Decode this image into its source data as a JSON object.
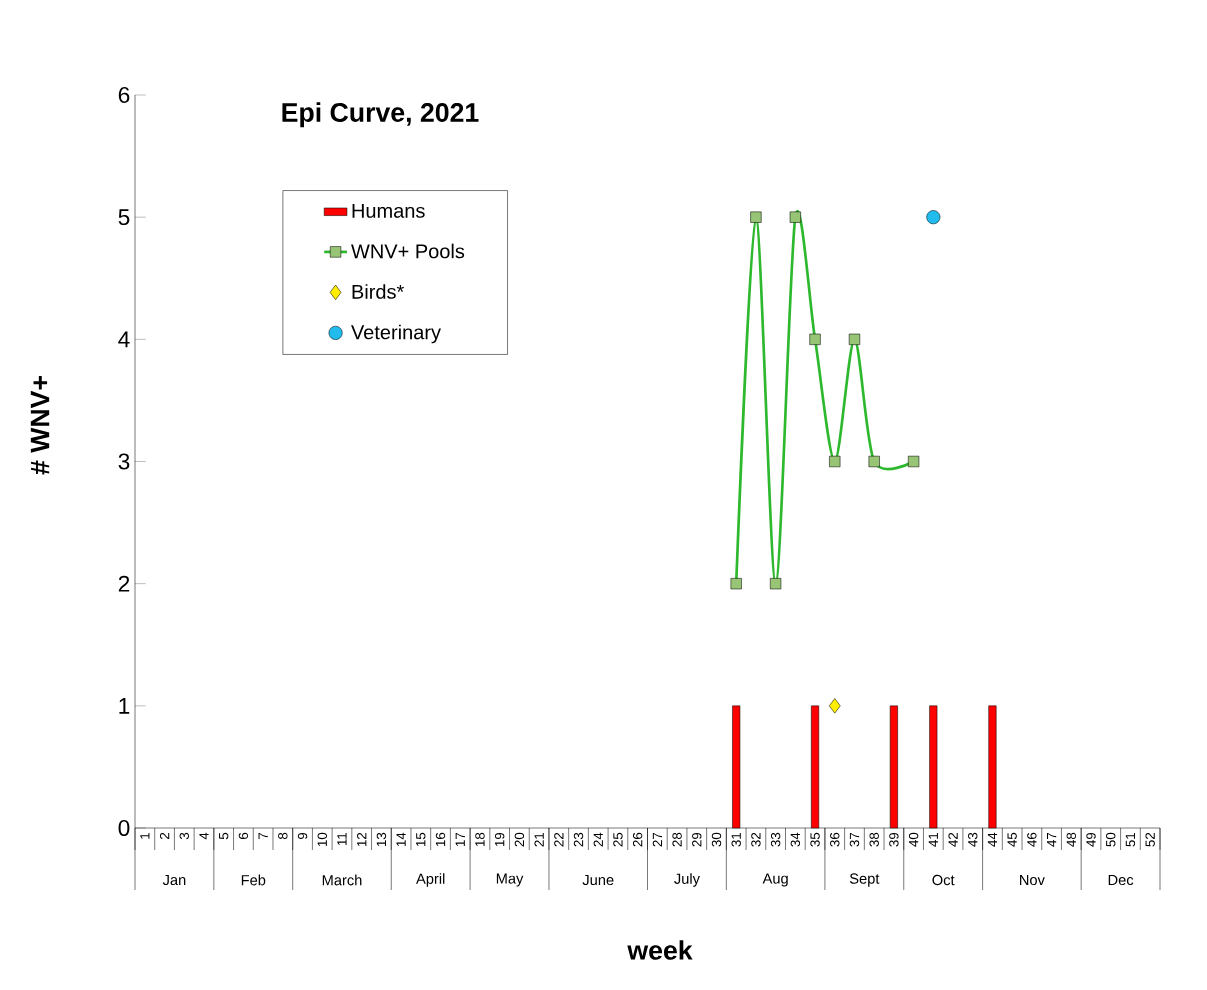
{
  "chart_data": {
    "type": "bar",
    "title": "Epi Curve, 2021",
    "xlabel": "week",
    "ylabel": "# WNV+",
    "categories": [
      "1",
      "2",
      "3",
      "4",
      "5",
      "6",
      "7",
      "8",
      "9",
      "10",
      "11",
      "12",
      "13",
      "14",
      "15",
      "16",
      "17",
      "18",
      "19",
      "20",
      "21",
      "22",
      "23",
      "24",
      "25",
      "26",
      "27",
      "28",
      "29",
      "30",
      "31",
      "32",
      "33",
      "34",
      "35",
      "36",
      "37",
      "38",
      "39",
      "40",
      "41",
      "42",
      "43",
      "44",
      "45",
      "46",
      "47",
      "48",
      "49",
      "50",
      "51",
      "52"
    ],
    "series": [
      {
        "name": "Humans",
        "color": "#ff0000",
        "values": [
          null,
          null,
          null,
          null,
          null,
          null,
          null,
          null,
          null,
          null,
          null,
          null,
          null,
          null,
          null,
          null,
          null,
          null,
          null,
          null,
          null,
          null,
          null,
          null,
          null,
          null,
          null,
          null,
          null,
          null,
          1,
          null,
          null,
          null,
          1,
          null,
          null,
          null,
          1,
          null,
          1,
          null,
          null,
          1,
          null,
          null,
          null,
          null,
          null,
          null,
          null,
          null
        ]
      },
      {
        "name": "WNV+ Pools",
        "type": "line",
        "color": "#2db82d",
        "marker": "square",
        "line_style": "solid",
        "values": [
          null,
          null,
          null,
          null,
          null,
          null,
          null,
          null,
          null,
          null,
          null,
          null,
          null,
          null,
          null,
          null,
          null,
          null,
          null,
          null,
          null,
          null,
          null,
          null,
          null,
          null,
          null,
          null,
          null,
          null,
          2,
          5,
          2,
          5,
          4,
          3,
          4,
          3,
          null,
          3,
          null,
          null,
          null,
          null,
          null,
          null,
          null,
          null,
          null,
          null,
          null,
          null
        ]
      },
      {
        "name": "Birds*",
        "type": "scatter",
        "color": "#ffee00",
        "marker": "diamond",
        "values": [
          null,
          null,
          null,
          null,
          null,
          null,
          null,
          null,
          null,
          null,
          null,
          null,
          null,
          null,
          null,
          null,
          null,
          null,
          null,
          null,
          null,
          null,
          null,
          null,
          null,
          null,
          null,
          null,
          null,
          null,
          null,
          null,
          null,
          null,
          null,
          1,
          null,
          null,
          null,
          null,
          null,
          null,
          null,
          null,
          null,
          null,
          null,
          null,
          null,
          null,
          null,
          null
        ]
      },
      {
        "name": "Veterinary",
        "type": "scatter",
        "color": "#22bbee",
        "marker": "circle",
        "values": [
          null,
          null,
          null,
          null,
          null,
          null,
          null,
          null,
          null,
          null,
          null,
          null,
          null,
          null,
          null,
          null,
          null,
          null,
          null,
          null,
          null,
          null,
          null,
          null,
          null,
          null,
          null,
          null,
          null,
          null,
          null,
          null,
          null,
          null,
          null,
          null,
          null,
          null,
          null,
          null,
          5,
          null,
          null,
          null,
          null,
          null,
          null,
          null,
          null,
          null,
          null,
          null
        ]
      }
    ],
    "ylim": [
      0,
      6
    ],
    "yticks": [
      0,
      1,
      2,
      3,
      4,
      5,
      6
    ],
    "grid": false,
    "legend": "top left",
    "annotations": [
      "Jan",
      "Feb",
      "March",
      "April",
      "May",
      "June",
      "July",
      "Aug",
      "Sept",
      "Oct",
      "Nov",
      "Dec"
    ]
  }
}
